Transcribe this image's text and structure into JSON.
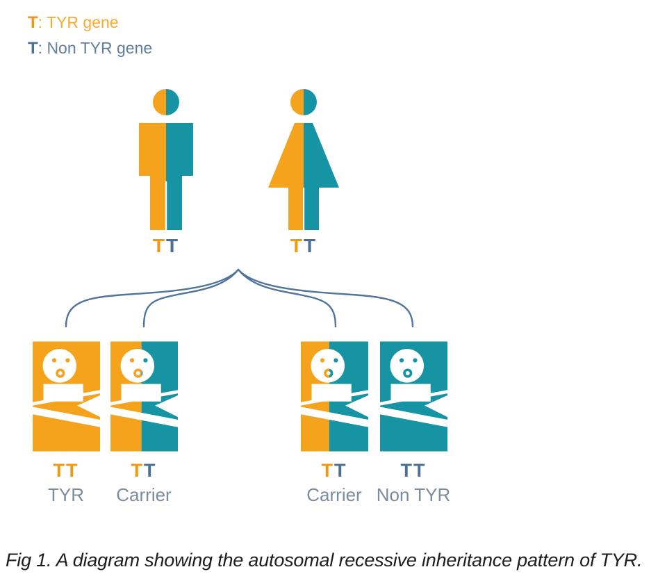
{
  "colors": {
    "orange": "#F5A21C",
    "teal": "#1794A4",
    "orange_strong": "#F2980F",
    "orange_light": "#F9AB30",
    "slate_strong": "#4C7093",
    "slate_light": "#5F7E9B",
    "label_text": "#7B8CA1",
    "fork": "#50749B",
    "caption": "#1D1D1D",
    "white": "#FFFFFF"
  },
  "legend": {
    "items": [
      {
        "allele": "T",
        "text": ": TYR gene",
        "allele_color": "orange_strong",
        "text_color": "orange_light"
      },
      {
        "allele": "T",
        "text": ": Non TYR gene",
        "allele_color": "slate_strong",
        "text_color": "slate_light"
      }
    ]
  },
  "parents": [
    {
      "id": "father",
      "figure": "male",
      "left_color": "orange",
      "right_color": "teal",
      "split": 48,
      "genotype": [
        {
          "letter": "T",
          "color": "orange_strong"
        },
        {
          "letter": "T",
          "color": "slate_strong"
        }
      ]
    },
    {
      "id": "mother",
      "figure": "female",
      "left_color": "orange",
      "right_color": "teal",
      "split": 52,
      "genotype": [
        {
          "letter": "T",
          "color": "orange_strong"
        },
        {
          "letter": "T",
          "color": "slate_strong"
        }
      ]
    }
  ],
  "offspring": [
    {
      "label": "TYR",
      "left_color": "orange",
      "right_color": "orange",
      "split": 50,
      "genotype": [
        {
          "letter": "T",
          "color": "orange_strong"
        },
        {
          "letter": "T",
          "color": "orange_strong"
        }
      ]
    },
    {
      "label": "Carrier",
      "left_color": "orange",
      "right_color": "teal",
      "split": 46,
      "genotype": [
        {
          "letter": "T",
          "color": "orange_strong"
        },
        {
          "letter": "T",
          "color": "slate_strong"
        }
      ]
    },
    {
      "label": "Carrier",
      "left_color": "orange",
      "right_color": "teal",
      "split": 42,
      "genotype": [
        {
          "letter": "T",
          "color": "orange_strong"
        },
        {
          "letter": "T",
          "color": "slate_strong"
        }
      ]
    },
    {
      "label": "Non TYR",
      "left_color": "teal",
      "right_color": "teal",
      "split": 50,
      "genotype": [
        {
          "letter": "T",
          "color": "slate_strong"
        },
        {
          "letter": "T",
          "color": "slate_strong"
        }
      ]
    }
  ],
  "caption": "Fig 1. A diagram showing the autosomal recessive inheritance pattern of TYR."
}
